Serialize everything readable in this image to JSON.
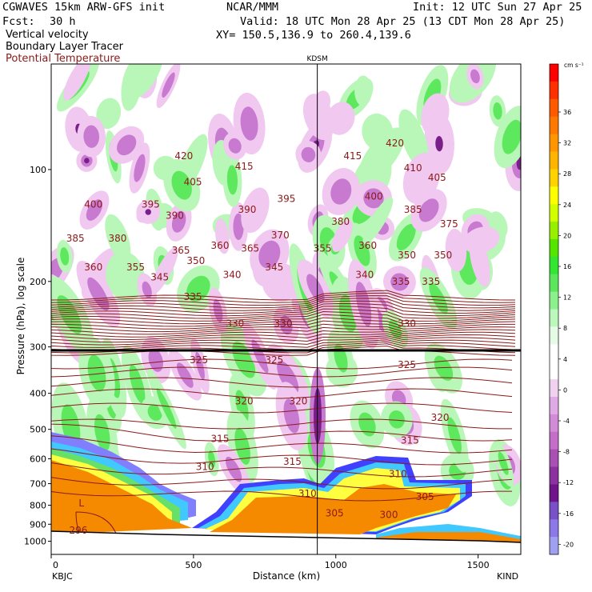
{
  "header": {
    "model_line": "CGWAVES 15km ARW-GFS init",
    "org": "NCAR/MMM",
    "init": "Init: 12 UTC Sun 27 Apr 25",
    "fcst_label": "Fcst:",
    "fcst_value": "30 h",
    "valid": "Valid: 18 UTC Mon 28 Apr 25 (13 CDT Mon 28 Apr 25)",
    "field1": "Vertical velocity",
    "xy": "XY= 150.5,136.9 to 260.4,139.6",
    "field2": "Boundary Layer Tracer",
    "field3": "Potential Temperature"
  },
  "colors": {
    "theta": "#8b1a1a",
    "pbl_orange": "#f58a00",
    "up_light": "#b8f7b8",
    "up_mid": "#5ee85e",
    "down_light": "#f0c8f0",
    "down_mid": "#c87ad0",
    "down_dark": "#7a1f8a"
  },
  "chart_data": {
    "type": "heatmap",
    "ylabel": "Pressure (hPa), log scale",
    "xlabel": "Distance (km)",
    "x_ticks": [
      "0",
      "500",
      "1000",
      "1500"
    ],
    "y_ticks": [
      "100",
      "200",
      "300",
      "400",
      "500",
      "600",
      "700",
      "800",
      "900",
      "1000"
    ],
    "xlim": [
      0,
      1650
    ],
    "ylim": [
      1000,
      50
    ],
    "y_scale": "log",
    "marker": {
      "label": "KDSM",
      "x_km": 935
    },
    "left_station": "KBJC",
    "right_station": "KIND",
    "colorbar": {
      "units": "cm s⁻¹",
      "labels": [
        "36",
        "32",
        "28",
        "24",
        "20",
        "16",
        "12",
        "8",
        "4",
        "0",
        "-4",
        "-8",
        "-12",
        "-16",
        "-20"
      ],
      "colors": [
        "#ff0000",
        "#ff3000",
        "#ff5a00",
        "#ff7800",
        "#ff9600",
        "#ffb400",
        "#ffd200",
        "#ffff00",
        "#d2ff00",
        "#96f000",
        "#55e600",
        "#32e632",
        "#5ce65c",
        "#8cf08c",
        "#bcf7bc",
        "#e6fbe6",
        "#ffffff",
        "#ffffff",
        "#f0d2f0",
        "#e0aae6",
        "#d28cd7",
        "#c36ec8",
        "#a850b4",
        "#8c32a0",
        "#70148c",
        "#7850c8",
        "#8c78e6",
        "#a0a0f0"
      ]
    },
    "theta_labels": [
      {
        "v": "420",
        "x": 220,
        "p": 92
      },
      {
        "v": "415",
        "x": 320,
        "p": 98
      },
      {
        "v": "405",
        "x": 235,
        "p": 108
      },
      {
        "v": "400",
        "x": 70,
        "p": 124
      },
      {
        "v": "395",
        "x": 165,
        "p": 124
      },
      {
        "v": "390",
        "x": 205,
        "p": 133
      },
      {
        "v": "390",
        "x": 325,
        "p": 128
      },
      {
        "v": "395",
        "x": 390,
        "p": 120
      },
      {
        "v": "385",
        "x": 40,
        "p": 153
      },
      {
        "v": "380",
        "x": 110,
        "p": 153
      },
      {
        "v": "365",
        "x": 215,
        "p": 165
      },
      {
        "v": "360",
        "x": 280,
        "p": 160
      },
      {
        "v": "365",
        "x": 330,
        "p": 163
      },
      {
        "v": "370",
        "x": 380,
        "p": 150
      },
      {
        "v": "360",
        "x": 70,
        "p": 183
      },
      {
        "v": "355",
        "x": 140,
        "p": 183
      },
      {
        "v": "350",
        "x": 240,
        "p": 176
      },
      {
        "v": "345",
        "x": 180,
        "p": 195
      },
      {
        "v": "340",
        "x": 300,
        "p": 192
      },
      {
        "v": "345",
        "x": 370,
        "p": 183
      },
      {
        "v": "355",
        "x": 450,
        "p": 163
      },
      {
        "v": "335",
        "x": 235,
        "p": 220
      },
      {
        "v": "330",
        "x": 305,
        "p": 260
      },
      {
        "v": "330",
        "x": 385,
        "p": 260
      },
      {
        "v": "325",
        "x": 245,
        "p": 325
      },
      {
        "v": "325",
        "x": 370,
        "p": 325
      },
      {
        "v": "320",
        "x": 320,
        "p": 420
      },
      {
        "v": "320",
        "x": 410,
        "p": 420
      },
      {
        "v": "315",
        "x": 280,
        "p": 530
      },
      {
        "v": "315",
        "x": 400,
        "p": 610
      },
      {
        "v": "315",
        "x": 595,
        "p": 535
      },
      {
        "v": "310",
        "x": 255,
        "p": 630
      },
      {
        "v": "310",
        "x": 425,
        "p": 745
      },
      {
        "v": "310",
        "x": 575,
        "p": 660
      },
      {
        "v": "305",
        "x": 470,
        "p": 840
      },
      {
        "v": "305",
        "x": 620,
        "p": 760
      },
      {
        "v": "300",
        "x": 560,
        "p": 850
      },
      {
        "v": "296",
        "x": 45,
        "p": 935
      },
      {
        "v": "L",
        "x": 50,
        "p": 790
      },
      {
        "v": "415",
        "x": 500,
        "p": 92
      },
      {
        "v": "420",
        "x": 570,
        "p": 85
      },
      {
        "v": "410",
        "x": 600,
        "p": 99
      },
      {
        "v": "405",
        "x": 640,
        "p": 105
      },
      {
        "v": "400",
        "x": 535,
        "p": 118
      },
      {
        "v": "385",
        "x": 600,
        "p": 128
      },
      {
        "v": "380",
        "x": 480,
        "p": 138
      },
      {
        "v": "375",
        "x": 660,
        "p": 140
      },
      {
        "v": "360",
        "x": 525,
        "p": 160
      },
      {
        "v": "350",
        "x": 590,
        "p": 170
      },
      {
        "v": "350",
        "x": 650,
        "p": 170
      },
      {
        "v": "340",
        "x": 520,
        "p": 192
      },
      {
        "v": "335",
        "x": 580,
        "p": 200
      },
      {
        "v": "335",
        "x": 630,
        "p": 200
      },
      {
        "v": "330",
        "x": 590,
        "p": 260
      },
      {
        "v": "325",
        "x": 590,
        "p": 335
      },
      {
        "v": "320",
        "x": 645,
        "p": 465
      }
    ]
  }
}
